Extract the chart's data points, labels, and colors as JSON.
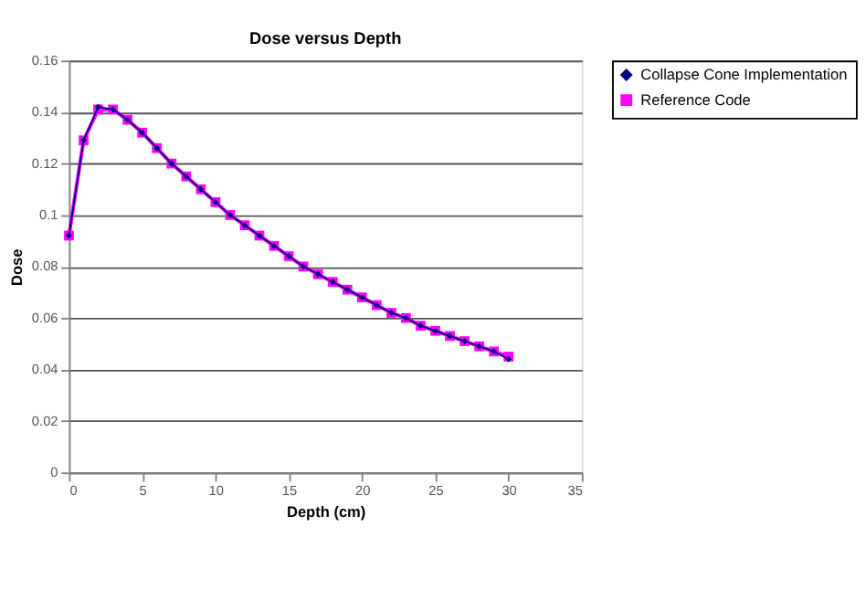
{
  "chart_data": {
    "type": "line",
    "title": "Dose versus Depth",
    "xlabel": "Depth (cm)",
    "ylabel": "Dose",
    "x": [
      0,
      1,
      2,
      3,
      4,
      5,
      6,
      7,
      8,
      9,
      10,
      11,
      12,
      13,
      14,
      15,
      16,
      17,
      18,
      19,
      20,
      21,
      22,
      23,
      24,
      25,
      26,
      27,
      28,
      29,
      30
    ],
    "series": [
      {
        "name": "Collapse Cone Implementation",
        "color": "#000080",
        "marker": "diamond",
        "values": [
          0.092,
          0.129,
          0.142,
          0.141,
          0.137,
          0.132,
          0.126,
          0.12,
          0.115,
          0.11,
          0.105,
          0.1,
          0.096,
          0.092,
          0.088,
          0.084,
          0.08,
          0.077,
          0.074,
          0.071,
          0.068,
          0.065,
          0.062,
          0.06,
          0.057,
          0.055,
          0.053,
          0.051,
          0.049,
          0.047,
          0.044
        ]
      },
      {
        "name": "Reference Code",
        "color": "#ff00ff",
        "marker": "square",
        "values": [
          0.092,
          0.129,
          0.141,
          0.141,
          0.137,
          0.132,
          0.126,
          0.12,
          0.115,
          0.11,
          0.105,
          0.1,
          0.096,
          0.092,
          0.088,
          0.084,
          0.08,
          0.077,
          0.074,
          0.071,
          0.068,
          0.065,
          0.062,
          0.06,
          0.057,
          0.055,
          0.053,
          0.051,
          0.049,
          0.047,
          0.045
        ]
      }
    ],
    "xlim": [
      0,
      35
    ],
    "xticks": [
      0,
      5,
      10,
      15,
      20,
      25,
      30,
      35
    ],
    "ylim": [
      0,
      0.16
    ],
    "yticks": [
      0,
      0.02,
      0.04,
      0.06,
      0.08,
      0.1,
      0.12,
      0.14,
      0.16
    ],
    "grid": "y",
    "legend": "right",
    "line_style": "solid"
  }
}
